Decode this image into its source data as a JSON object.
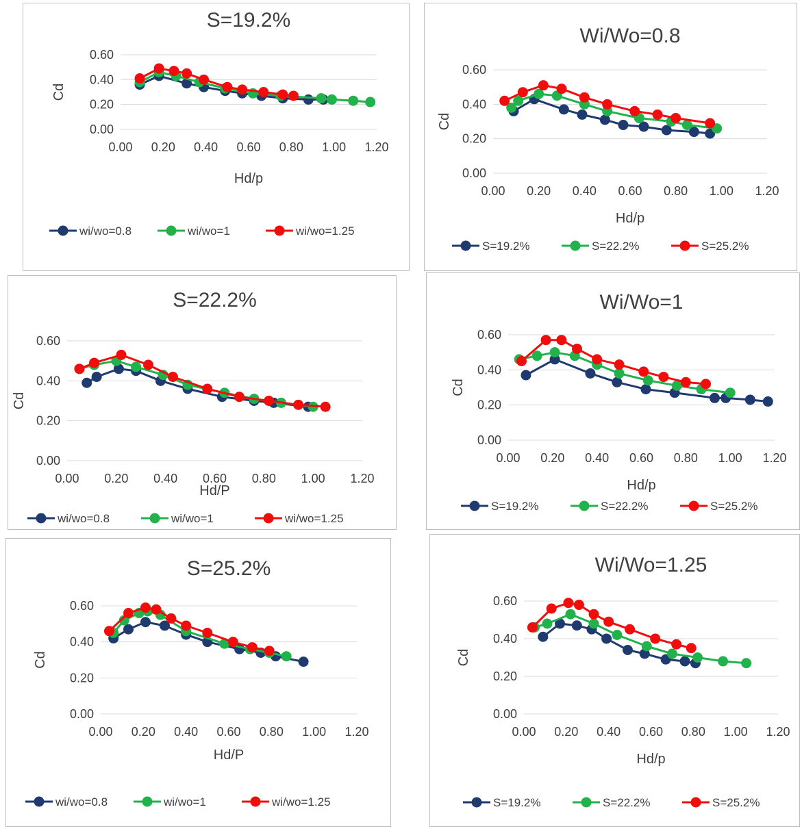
{
  "colors": {
    "s1": "#1f3a6e",
    "s2": "#22b24c",
    "s3": "#f20d0d",
    "grid": "#d9d9d9",
    "text": "#404040"
  },
  "chart_data": [
    {
      "type": "line",
      "title": "S=19.2%",
      "xlabel": "Hd/p",
      "ylabel": "Cd",
      "xlim": [
        0,
        1.2
      ],
      "ylim": [
        0,
        0.6
      ],
      "grid": "horizontal",
      "legend": "bottom",
      "xticks": [
        "0.00",
        "0.20",
        "0.40",
        "0.60",
        "0.80",
        "1.00",
        "1.20"
      ],
      "yticks": [
        "0.00",
        "0.20",
        "0.40",
        "0.60"
      ],
      "series": [
        {
          "name": "wi/wo=0.8",
          "x": [
            0.09,
            0.18,
            0.31,
            0.39,
            0.49,
            0.57,
            0.66,
            0.76,
            0.88,
            0.95
          ],
          "y": [
            0.36,
            0.43,
            0.37,
            0.34,
            0.31,
            0.29,
            0.27,
            0.25,
            0.24,
            0.24
          ]
        },
        {
          "name": "wi/wo=1",
          "x": [
            0.09,
            0.18,
            0.26,
            0.37,
            0.49,
            0.62,
            0.75,
            0.94,
            0.99,
            1.09,
            1.17
          ],
          "y": [
            0.38,
            0.46,
            0.43,
            0.38,
            0.33,
            0.29,
            0.27,
            0.25,
            0.24,
            0.23,
            0.22
          ]
        },
        {
          "name": "wi/wo=1.25",
          "x": [
            0.09,
            0.18,
            0.25,
            0.31,
            0.39,
            0.5,
            0.57,
            0.67,
            0.76,
            0.81
          ],
          "y": [
            0.41,
            0.49,
            0.47,
            0.45,
            0.4,
            0.34,
            0.32,
            0.3,
            0.28,
            0.27
          ]
        }
      ]
    },
    {
      "type": "line",
      "title": "Wi/Wo=0.8",
      "xlabel": "Hd/p",
      "ylabel": "Cd",
      "xlim": [
        0,
        1.2
      ],
      "ylim": [
        0,
        0.6
      ],
      "grid": "horizontal",
      "legend": "bottom",
      "xticks": [
        "0.00",
        "0.20",
        "0.40",
        "0.60",
        "0.80",
        "1.00",
        "1.20"
      ],
      "yticks": [
        "0.00",
        "0.20",
        "0.40",
        "0.60"
      ],
      "series": [
        {
          "name": "S=19.2%",
          "x": [
            0.09,
            0.18,
            0.31,
            0.39,
            0.49,
            0.57,
            0.66,
            0.76,
            0.88,
            0.95
          ],
          "y": [
            0.36,
            0.43,
            0.37,
            0.34,
            0.31,
            0.28,
            0.27,
            0.25,
            0.24,
            0.23
          ]
        },
        {
          "name": "S=22.2%",
          "x": [
            0.08,
            0.11,
            0.2,
            0.28,
            0.4,
            0.5,
            0.64,
            0.78,
            0.85,
            0.98
          ],
          "y": [
            0.38,
            0.42,
            0.46,
            0.45,
            0.4,
            0.36,
            0.32,
            0.3,
            0.28,
            0.26
          ]
        },
        {
          "name": "S=25.2%",
          "x": [
            0.05,
            0.13,
            0.22,
            0.3,
            0.4,
            0.5,
            0.62,
            0.72,
            0.8,
            0.95
          ],
          "y": [
            0.42,
            0.47,
            0.51,
            0.49,
            0.44,
            0.4,
            0.36,
            0.34,
            0.32,
            0.29
          ]
        }
      ]
    },
    {
      "type": "line",
      "title": "S=22.2%",
      "xlabel": "Hd/P",
      "ylabel": "Cd",
      "xlim": [
        0,
        1.2
      ],
      "ylim": [
        0,
        0.6
      ],
      "grid": "horizontal",
      "legend": "bottom",
      "xticks": [
        "0.00",
        "0.20",
        "0.40",
        "0.60",
        "0.80",
        "1.00",
        "1.20"
      ],
      "yticks": [
        "0.00",
        "0.20",
        "0.40",
        "0.60"
      ],
      "series": [
        {
          "name": "wi/wo=0.8",
          "x": [
            0.08,
            0.12,
            0.21,
            0.28,
            0.38,
            0.49,
            0.63,
            0.76,
            0.84,
            0.98
          ],
          "y": [
            0.39,
            0.42,
            0.46,
            0.45,
            0.4,
            0.36,
            0.32,
            0.3,
            0.29,
            0.27
          ]
        },
        {
          "name": "wi/wo=1",
          "x": [
            0.05,
            0.11,
            0.2,
            0.28,
            0.39,
            0.49,
            0.64,
            0.76,
            0.87,
            1.0
          ],
          "y": [
            0.46,
            0.48,
            0.5,
            0.47,
            0.43,
            0.38,
            0.34,
            0.31,
            0.29,
            0.27
          ]
        },
        {
          "name": "wi/wo=1.25",
          "x": [
            0.05,
            0.11,
            0.22,
            0.33,
            0.43,
            0.57,
            0.7,
            0.82,
            0.94,
            1.05
          ],
          "y": [
            0.46,
            0.49,
            0.53,
            0.48,
            0.42,
            0.36,
            0.32,
            0.3,
            0.28,
            0.27
          ]
        }
      ]
    },
    {
      "type": "line",
      "title": "Wi/Wo=1",
      "xlabel": "Hd/p",
      "ylabel": "Cd",
      "xlim": [
        0,
        1.2
      ],
      "ylim": [
        0,
        0.6
      ],
      "grid": "horizontal",
      "legend": "bottom",
      "xticks": [
        "0.00",
        "0.20",
        "0.40",
        "0.60",
        "0.80",
        "1.00",
        "1.20"
      ],
      "yticks": [
        "0.00",
        "0.20",
        "0.40",
        "0.60"
      ],
      "series": [
        {
          "name": "S=19.2%",
          "x": [
            0.08,
            0.21,
            0.37,
            0.49,
            0.62,
            0.75,
            0.93,
            0.98,
            1.09,
            1.17
          ],
          "y": [
            0.37,
            0.46,
            0.38,
            0.33,
            0.29,
            0.27,
            0.24,
            0.24,
            0.23,
            0.22
          ]
        },
        {
          "name": "S=22.2%",
          "x": [
            0.05,
            0.13,
            0.21,
            0.3,
            0.4,
            0.5,
            0.63,
            0.76,
            0.87,
            1.0
          ],
          "y": [
            0.46,
            0.48,
            0.5,
            0.48,
            0.43,
            0.38,
            0.34,
            0.31,
            0.29,
            0.27
          ]
        },
        {
          "name": "S=25.2%",
          "x": [
            0.06,
            0.17,
            0.24,
            0.31,
            0.4,
            0.5,
            0.61,
            0.7,
            0.8,
            0.89
          ],
          "y": [
            0.45,
            0.57,
            0.57,
            0.52,
            0.46,
            0.43,
            0.39,
            0.36,
            0.33,
            0.32
          ]
        }
      ]
    },
    {
      "type": "line",
      "title": "S=25.2%",
      "xlabel": "Hd/P",
      "ylabel": "Cd",
      "xlim": [
        0,
        1.2
      ],
      "ylim": [
        0,
        0.6
      ],
      "grid": "horizontal",
      "legend": "bottom",
      "xticks": [
        "0.00",
        "0.20",
        "0.40",
        "0.60",
        "0.80",
        "1.00",
        "1.20"
      ],
      "yticks": [
        "0.00",
        "0.20",
        "0.40",
        "0.60"
      ],
      "series": [
        {
          "name": "wi/wo=0.8",
          "x": [
            0.06,
            0.13,
            0.21,
            0.3,
            0.4,
            0.5,
            0.65,
            0.75,
            0.82,
            0.95
          ],
          "y": [
            0.42,
            0.47,
            0.51,
            0.49,
            0.44,
            0.4,
            0.36,
            0.34,
            0.32,
            0.29
          ]
        },
        {
          "name": "wi/wo=1",
          "x": [
            0.06,
            0.11,
            0.18,
            0.22,
            0.28,
            0.4,
            0.58,
            0.7,
            0.79,
            0.87
          ],
          "y": [
            0.45,
            0.52,
            0.56,
            0.57,
            0.55,
            0.46,
            0.39,
            0.36,
            0.34,
            0.32
          ]
        },
        {
          "name": "wi/wo=1.25",
          "x": [
            0.04,
            0.13,
            0.21,
            0.26,
            0.33,
            0.4,
            0.5,
            0.62,
            0.71,
            0.79
          ],
          "y": [
            0.46,
            0.56,
            0.59,
            0.58,
            0.53,
            0.49,
            0.45,
            0.4,
            0.37,
            0.35
          ]
        }
      ]
    },
    {
      "type": "line",
      "title": "Wi/Wo=1.25",
      "xlabel": "Hd/p",
      "ylabel": "Cd",
      "xlim": [
        0,
        1.2
      ],
      "ylim": [
        0,
        0.6
      ],
      "grid": "horizontal",
      "legend": "bottom",
      "xticks": [
        "0.00",
        "0.20",
        "0.40",
        "0.60",
        "0.80",
        "1.00",
        "1.20"
      ],
      "yticks": [
        "0.00",
        "0.20",
        "0.40",
        "0.60"
      ],
      "series": [
        {
          "name": "S=19.2%",
          "x": [
            0.09,
            0.17,
            0.25,
            0.32,
            0.39,
            0.49,
            0.57,
            0.67,
            0.76,
            0.81
          ],
          "y": [
            0.41,
            0.48,
            0.47,
            0.45,
            0.4,
            0.34,
            0.32,
            0.29,
            0.28,
            0.27
          ]
        },
        {
          "name": "S=22.2%",
          "x": [
            0.05,
            0.11,
            0.22,
            0.33,
            0.44,
            0.58,
            0.7,
            0.82,
            0.94,
            1.05
          ],
          "y": [
            0.46,
            0.48,
            0.53,
            0.48,
            0.42,
            0.36,
            0.32,
            0.3,
            0.28,
            0.27
          ]
        },
        {
          "name": "S=25.2%",
          "x": [
            0.04,
            0.13,
            0.21,
            0.26,
            0.33,
            0.4,
            0.5,
            0.62,
            0.72,
            0.79
          ],
          "y": [
            0.46,
            0.56,
            0.59,
            0.58,
            0.53,
            0.49,
            0.45,
            0.4,
            0.37,
            0.35
          ]
        }
      ]
    }
  ]
}
